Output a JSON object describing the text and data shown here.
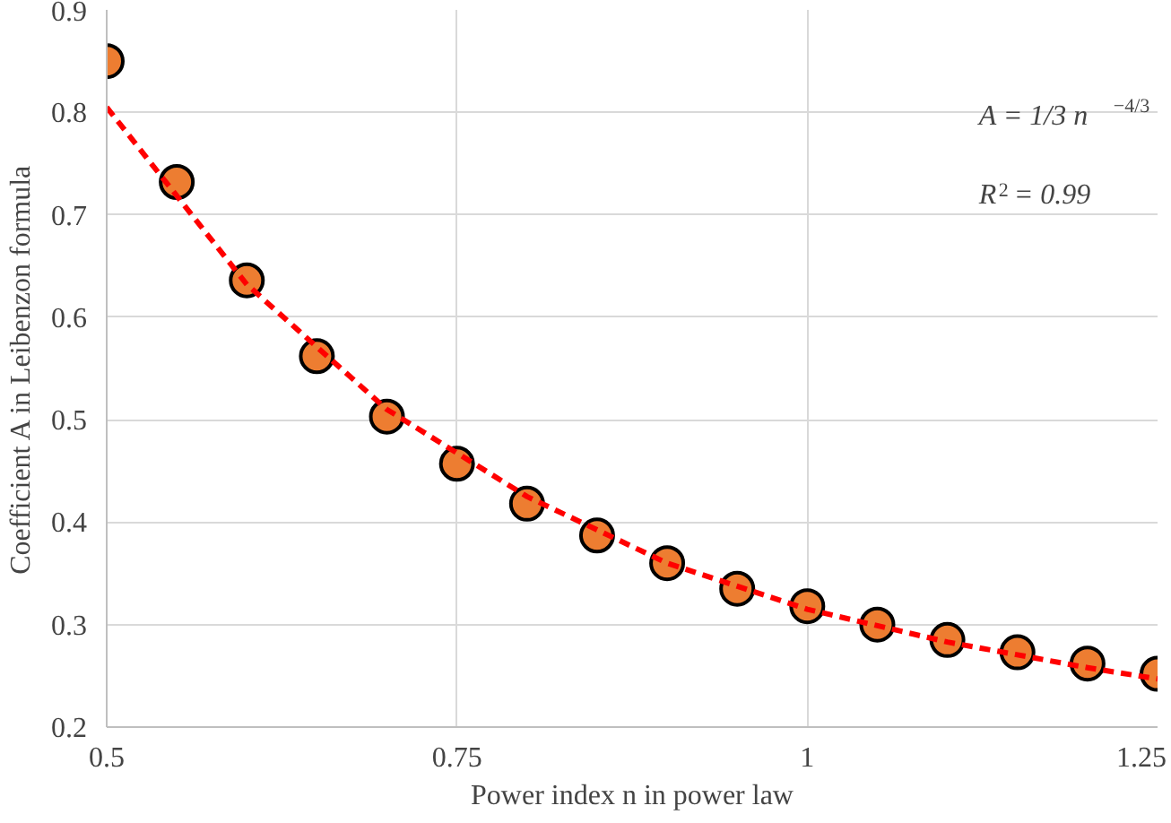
{
  "chart_data": {
    "type": "scatter",
    "xlabel": "Power index n in power law",
    "ylabel": "Coefficient A in Leibenzon formula",
    "x": [
      0.5,
      0.55,
      0.6,
      0.65,
      0.7,
      0.75,
      0.8,
      0.85,
      0.9,
      0.95,
      1.0,
      1.05,
      1.1,
      1.15,
      1.2,
      1.25
    ],
    "series": [
      {
        "color": "#ed7d31",
        "marker": "circle",
        "values": [
          0.85,
          0.732,
          0.636,
          0.562,
          0.503,
          0.457,
          0.418,
          0.387,
          0.36,
          0.335,
          0.318,
          0.3,
          0.285,
          0.273,
          0.262,
          0.252
        ]
      },
      {
        "type": "line",
        "color": "#ff0000",
        "line_style": "dashed",
        "marker": "none",
        "x": [
          0.5,
          0.6,
          0.7,
          0.8,
          0.9,
          1.0,
          1.1,
          1.2,
          1.25
        ],
        "values": [
          0.805,
          0.632,
          0.51,
          0.425,
          0.36,
          0.315,
          0.283,
          0.258,
          0.247
        ]
      }
    ],
    "xlim": [
      0.5,
      1.25
    ],
    "xticks": [
      0.5,
      0.75,
      1,
      1.25
    ],
    "ylim": [
      0.2,
      0.9
    ],
    "yticks": [
      0.2,
      0.3,
      0.4,
      0.5,
      0.6,
      0.7,
      0.8,
      0.9
    ],
    "grid": true,
    "annotations": [
      "A = 1/3 n$^{−4/3}$",
      "R$^{2}$ = 0.99"
    ]
  }
}
